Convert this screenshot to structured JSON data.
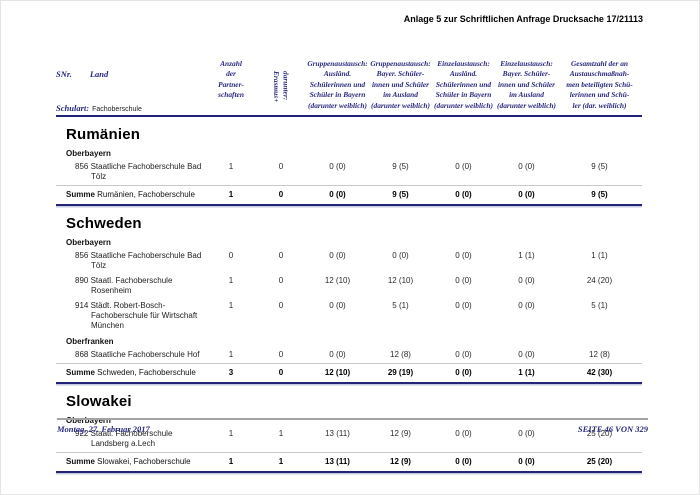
{
  "colors": {
    "accent_navy": "#28287e",
    "line_navy": "#232378"
  },
  "page_header": {
    "annotation": "Anlage 5 zur Schriftlichen Anfrage Drucksache 17/21113"
  },
  "table_header": {
    "snr": "SNr.",
    "land": "Land",
    "schulart_label": "Schulart:",
    "schulart_value": "Fachoberschule",
    "partnerships": [
      "Anzahl",
      "der",
      "Partner-",
      "schaften"
    ],
    "erasmus": [
      "darunter:",
      "Erasmus+"
    ],
    "columns": [
      [
        "Gruppenaustausch:",
        "Ausländ.",
        "Schülerinnen und",
        "Schüler in Bayern",
        "(darunter weiblich)"
      ],
      [
        "Gruppenaustausch:",
        "Bayer. Schüler-",
        "innen und Schüler",
        "im Ausland",
        "(darunter weiblich)"
      ],
      [
        "Einzelaustausch:",
        "Ausländ.",
        "Schülerinnen und",
        "Schüler in Bayern",
        "(darunter weiblich)"
      ],
      [
        "Einzelaustausch:",
        "Bayer. Schüler-",
        "innen und Schüler",
        "im Ausland",
        "(darunter weiblich)"
      ],
      [
        "Gesamtzahl der an",
        "Austauschmaßnah-",
        "men beteiligten Schü-",
        "lerinnen und Schü-",
        "ler (dar. weiblich)"
      ]
    ]
  },
  "sections": [
    {
      "country": "Rumänien",
      "groups": [
        {
          "region": "Oberbayern",
          "schools": [
            {
              "name": "856 Staatliche Fachoberschule Bad Tölz",
              "values": [
                "1",
                "0",
                "0 (0)",
                "9 (5)",
                "0 (0)",
                "0 (0)",
                "9 (5)"
              ]
            }
          ]
        }
      ],
      "total": {
        "label": "Summe",
        "label_rest": "Rumänien, Fachoberschule",
        "values": [
          "1",
          "0",
          "0 (0)",
          "9 (5)",
          "0 (0)",
          "0 (0)",
          "9 (5)"
        ]
      }
    },
    {
      "country": "Schweden",
      "groups": [
        {
          "region": "Oberbayern",
          "schools": [
            {
              "name": "856 Staatliche Fachoberschule Bad Tölz",
              "values": [
                "0",
                "0",
                "0 (0)",
                "0 (0)",
                "0 (0)",
                "1 (1)",
                "1 (1)"
              ]
            },
            {
              "name": "890 Staatl. Fachoberschule Rosenheim",
              "values": [
                "1",
                "0",
                "12 (10)",
                "12 (10)",
                "0 (0)",
                "0 (0)",
                "24 (20)"
              ]
            },
            {
              "name": "914 Städt. Robert-Bosch-Fachoberschule für Wirtschaft München",
              "values": [
                "1",
                "0",
                "0 (0)",
                "5 (1)",
                "0 (0)",
                "0 (0)",
                "5 (1)"
              ]
            }
          ]
        },
        {
          "region": "Oberfranken",
          "schools": [
            {
              "name": "868 Staatliche Fachoberschule Hof",
              "values": [
                "1",
                "0",
                "0 (0)",
                "12 (8)",
                "0 (0)",
                "0 (0)",
                "12 (8)"
              ]
            }
          ]
        }
      ],
      "total": {
        "label": "Summe",
        "label_rest": "Schweden, Fachoberschule",
        "values": [
          "3",
          "0",
          "12 (10)",
          "29 (19)",
          "0 (0)",
          "1 (1)",
          "42 (30)"
        ]
      }
    },
    {
      "country": "Slowakei",
      "groups": [
        {
          "region": "Oberbayern",
          "schools": [
            {
              "name": "922 Staatl. Fachoberschule Landsberg a.Lech",
              "values": [
                "1",
                "1",
                "13 (11)",
                "12 (9)",
                "0 (0)",
                "0 (0)",
                "25 (20)"
              ]
            }
          ]
        }
      ],
      "total": {
        "label": "Summe",
        "label_rest": "Slowakei, Fachoberschule",
        "values": [
          "1",
          "1",
          "13 (11)",
          "12 (9)",
          "0 (0)",
          "0 (0)",
          "25 (20)"
        ]
      }
    }
  ],
  "footer": {
    "date": "Montag, 27. Februar 2017",
    "page": "SEITE 46 VON 329"
  }
}
